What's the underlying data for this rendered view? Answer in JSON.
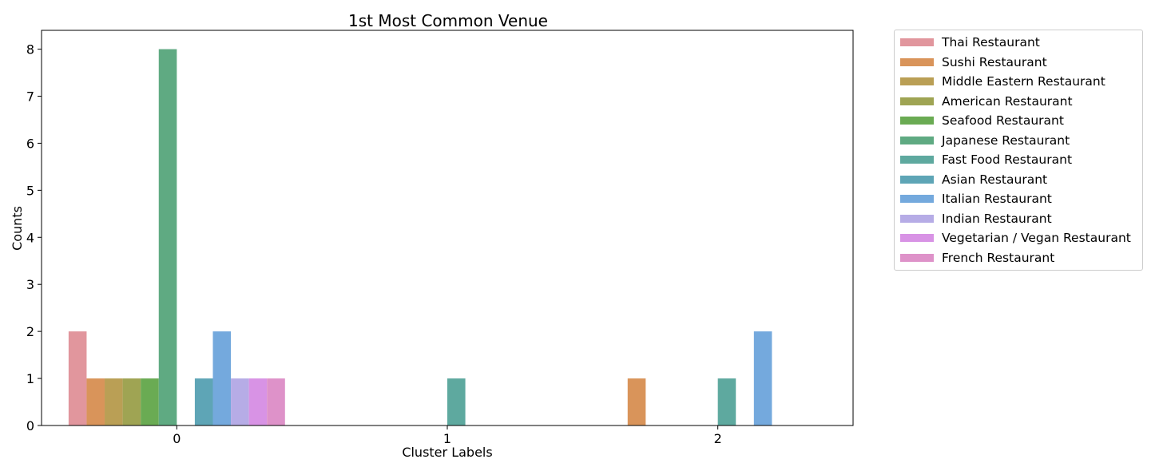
{
  "chart_data": {
    "type": "bar",
    "title": "1st Most Common Venue",
    "xlabel": "Cluster Labels",
    "ylabel": "Counts",
    "categories": [
      "0",
      "1",
      "2"
    ],
    "ylim": [
      0,
      8.4
    ],
    "yticks": [
      "0",
      "1",
      "2",
      "3",
      "4",
      "5",
      "6",
      "7",
      "8"
    ],
    "grid": false,
    "legend_position": "outside-right-top",
    "series": [
      {
        "name": "Thai Restaurant",
        "color": "#e1969d",
        "values": [
          2,
          null,
          null
        ]
      },
      {
        "name": "Sushi Restaurant",
        "color": "#d9945a",
        "values": [
          1,
          null,
          1
        ]
      },
      {
        "name": "Middle Eastern Restaurant",
        "color": "#ba9f55",
        "values": [
          1,
          null,
          null
        ]
      },
      {
        "name": "American Restaurant",
        "color": "#9fa453",
        "values": [
          1,
          null,
          null
        ]
      },
      {
        "name": "Seafood Restaurant",
        "color": "#6aab53",
        "values": [
          1,
          null,
          null
        ]
      },
      {
        "name": "Japanese Restaurant",
        "color": "#5faa82",
        "values": [
          8,
          null,
          null
        ]
      },
      {
        "name": "Fast Food Restaurant",
        "color": "#5ea99f",
        "values": [
          null,
          1,
          1
        ]
      },
      {
        "name": "Asian Restaurant",
        "color": "#5ea5b6",
        "values": [
          1,
          null,
          null
        ]
      },
      {
        "name": "Italian Restaurant",
        "color": "#74a9dd",
        "values": [
          2,
          null,
          2
        ]
      },
      {
        "name": "Indian Restaurant",
        "color": "#b6ace6",
        "values": [
          1,
          null,
          null
        ]
      },
      {
        "name": "Vegetarian / Vegan Restaurant",
        "color": "#d893e5",
        "values": [
          1,
          null,
          null
        ]
      },
      {
        "name": "French Restaurant",
        "color": "#de92c9",
        "values": [
          1,
          null,
          null
        ]
      }
    ]
  }
}
